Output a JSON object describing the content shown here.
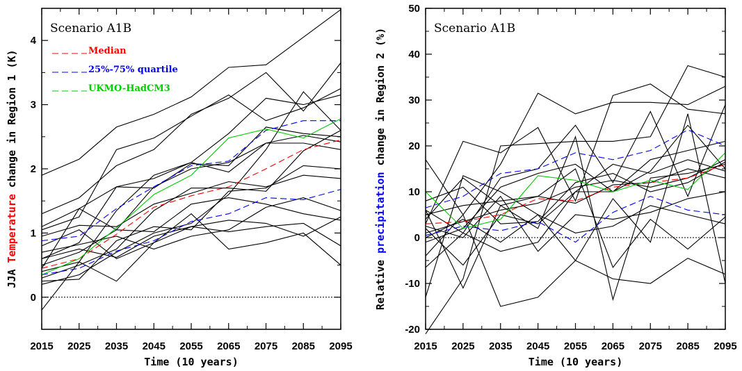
{
  "chart_data": [
    {
      "type": "line",
      "title": "Scenario A1B",
      "xlabel": "Time (10 years)",
      "ylabel": {
        "pre": "JJA ",
        "highlight": "Temperature",
        "post": " change in Region 1 (K)",
        "highlight_color": "#ff0000"
      },
      "x": [
        2015,
        2025,
        2035,
        2045,
        2055,
        2065,
        2075,
        2085,
        2095
      ],
      "xlim": [
        2015,
        2095
      ],
      "ylim": [
        -0.5,
        4.5
      ],
      "yticks": [
        0,
        1,
        2,
        3,
        4
      ],
      "ytick_labels": [
        "0",
        "1",
        "2",
        "3",
        "4"
      ],
      "xtick_labels": [
        "2015",
        "2025",
        "2035",
        "2045",
        "2055",
        "2065",
        "2075",
        "2085",
        "2095"
      ],
      "zero_line": 0,
      "legend": [
        {
          "label": "Median",
          "color": "#ff0000"
        },
        {
          "label": "25%-75% quartile",
          "color": "#0000ff"
        },
        {
          "label": "UKMO-HadCM3",
          "color": "#00cc00"
        }
      ],
      "series": [
        {
          "color": "#ff0000",
          "dashed": true,
          "values": [
            0.45,
            0.6,
            0.98,
            1.4,
            1.58,
            1.72,
            2.0,
            2.3,
            2.45
          ]
        },
        {
          "color": "#0000ff",
          "dashed": true,
          "values": [
            0.88,
            0.95,
            1.38,
            1.72,
            2.05,
            2.12,
            2.6,
            2.75,
            2.75
          ]
        },
        {
          "color": "#0000ff",
          "dashed": true,
          "values": [
            0.35,
            0.45,
            0.72,
            0.88,
            1.18,
            1.3,
            1.55,
            1.52,
            1.68
          ]
        },
        {
          "color": "#00cc00",
          "dashed": false,
          "values": [
            0.35,
            0.6,
            1.08,
            1.6,
            1.9,
            2.48,
            2.62,
            2.48,
            2.78
          ]
        },
        {
          "color": "#000000",
          "values": [
            1.9,
            2.15,
            2.65,
            2.85,
            3.12,
            3.58,
            3.62,
            4.05,
            4.48
          ]
        },
        {
          "color": "#000000",
          "values": [
            1.3,
            1.55,
            2.05,
            2.3,
            2.85,
            3.1,
            3.5,
            2.9,
            3.65
          ]
        },
        {
          "color": "#000000",
          "values": [
            1.05,
            1.25,
            2.3,
            2.48,
            2.82,
            3.15,
            2.75,
            2.95,
            3.25
          ]
        },
        {
          "color": "#000000",
          "values": [
            0.6,
            0.85,
            1.72,
            1.85,
            2.1,
            2.55,
            3.1,
            3.0,
            3.15
          ]
        },
        {
          "color": "#000000",
          "values": [
            0.2,
            0.35,
            0.7,
            1.0,
            1.15,
            1.6,
            2.3,
            3.2,
            2.6
          ]
        },
        {
          "color": "#000000",
          "values": [
            0.45,
            1.38,
            1.72,
            1.7,
            2.08,
            2.05,
            2.65,
            2.55,
            2.5
          ]
        },
        {
          "color": "#000000",
          "values": [
            0.5,
            0.7,
            1.05,
            1.72,
            2.0,
            2.1,
            2.4,
            2.52,
            2.42
          ]
        },
        {
          "color": "#000000",
          "values": [
            -0.2,
            0.55,
            1.35,
            1.9,
            2.1,
            1.95,
            2.4,
            2.4,
            2.3
          ]
        },
        {
          "color": "#000000",
          "values": [
            0.3,
            0.5,
            0.75,
            1.35,
            1.7,
            1.7,
            1.65,
            2.28,
            2.6
          ]
        },
        {
          "color": "#000000",
          "values": [
            0.95,
            1.12,
            1.1,
            1.45,
            1.62,
            1.8,
            1.72,
            1.9,
            1.85
          ]
        },
        {
          "color": "#000000",
          "values": [
            0.25,
            0.28,
            0.88,
            1.1,
            1.05,
            1.65,
            1.7,
            2.05,
            2.0
          ]
        },
        {
          "color": "#000000",
          "values": [
            1.1,
            1.38,
            1.05,
            1.02,
            1.45,
            1.55,
            1.45,
            1.3,
            1.2
          ]
        },
        {
          "color": "#000000",
          "values": [
            0.6,
            0.75,
            0.62,
            0.95,
            1.1,
            1.02,
            1.1,
            1.15,
            0.8
          ]
        },
        {
          "color": "#000000",
          "values": [
            0.4,
            0.55,
            0.25,
            0.85,
            1.3,
            0.75,
            0.85,
            1.0,
            0.5
          ]
        },
        {
          "color": "#000000",
          "values": [
            0.7,
            0.82,
            0.95,
            0.75,
            0.95,
            1.05,
            1.4,
            1.55,
            1.35
          ]
        },
        {
          "color": "#000000",
          "values": [
            0.8,
            1.05,
            0.6,
            0.85,
            1.1,
            1.2,
            1.15,
            0.95,
            1.25
          ]
        }
      ]
    },
    {
      "type": "line",
      "title": "Scenario A1B",
      "xlabel": "Time (10 years)",
      "ylabel": {
        "pre": "Relative ",
        "highlight": "precipitation",
        "post": " change in Region 2 (%)",
        "highlight_color": "#0000ff"
      },
      "x": [
        2015,
        2025,
        2035,
        2045,
        2055,
        2065,
        2075,
        2085,
        2095
      ],
      "xlim": [
        2015,
        2095
      ],
      "ylim": [
        -20,
        50
      ],
      "yticks": [
        -20,
        -10,
        0,
        10,
        20,
        30,
        40,
        50
      ],
      "ytick_labels": [
        "-20",
        "-10",
        "0",
        "10",
        "20",
        "30",
        "40",
        "50"
      ],
      "xtick_labels": [
        "2015",
        "2025",
        "2035",
        "2045",
        "2055",
        "2065",
        "2075",
        "2085",
        "2095"
      ],
      "zero_line": 0,
      "series": [
        {
          "color": "#ff0000",
          "dashed": true,
          "values": [
            3.0,
            3.5,
            5.0,
            8.5,
            8.0,
            11.0,
            12.0,
            13.0,
            16.0
          ]
        },
        {
          "color": "#0000ff",
          "dashed": true,
          "values": [
            6.5,
            9.0,
            14.0,
            15.0,
            18.5,
            17.0,
            19.0,
            23.5,
            20.0
          ]
        },
        {
          "color": "#0000ff",
          "dashed": true,
          "values": [
            0.5,
            2.5,
            1.5,
            3.5,
            -1.0,
            5.5,
            9.0,
            6.0,
            5.0
          ]
        },
        {
          "color": "#00cc00",
          "dashed": false,
          "values": [
            10.0,
            2.0,
            4.0,
            13.5,
            12.5,
            10.0,
            12.5,
            10.5,
            18.5
          ]
        },
        {
          "color": "#000000",
          "values": [
            17.0,
            5.0,
            16.0,
            31.5,
            27.0,
            29.5,
            29.5,
            29.0,
            33.0
          ]
        },
        {
          "color": "#000000",
          "values": [
            3.0,
            21.0,
            18.5,
            24.0,
            8.0,
            31.0,
            33.5,
            28.0,
            27.0
          ]
        },
        {
          "color": "#000000",
          "values": [
            -21.0,
            -9.0,
            20.0,
            20.5,
            21.0,
            21.0,
            22.0,
            37.5,
            35.0
          ]
        },
        {
          "color": "#000000",
          "values": [
            6.0,
            1.0,
            13.0,
            15.0,
            24.5,
            12.0,
            27.5,
            9.0,
            29.0
          ]
        },
        {
          "color": "#000000",
          "values": [
            -13.0,
            13.5,
            10.0,
            5.0,
            -5.0,
            8.5,
            -1.0,
            27.0,
            -10.0
          ]
        },
        {
          "color": "#000000",
          "values": [
            4.0,
            13.0,
            7.0,
            2.0,
            22.0,
            -13.5,
            13.0,
            14.0,
            16.0
          ]
        },
        {
          "color": "#000000",
          "values": [
            2.0,
            -6.0,
            5.0,
            3.0,
            10.0,
            10.0,
            14.5,
            24.5,
            15.0
          ]
        },
        {
          "color": "#000000",
          "values": [
            -4.0,
            5.0,
            -15.0,
            -13.0,
            -5.0,
            -9.0,
            -10.0,
            -4.5,
            -8.0
          ]
        },
        {
          "color": "#000000",
          "values": [
            6.0,
            -11.0,
            7.0,
            9.0,
            15.0,
            -6.5,
            4.0,
            -2.5,
            4.5
          ]
        },
        {
          "color": "#000000",
          "values": [
            -6.5,
            1.0,
            -3.0,
            -1.0,
            10.0,
            16.0,
            14.0,
            17.0,
            14.5
          ]
        },
        {
          "color": "#000000",
          "values": [
            1.0,
            3.5,
            6.0,
            7.5,
            11.0,
            12.5,
            11.0,
            13.0,
            17.0
          ]
        },
        {
          "color": "#000000",
          "values": [
            2.5,
            0.0,
            9.0,
            -3.0,
            5.0,
            4.0,
            5.5,
            8.5,
            10.0
          ]
        },
        {
          "color": "#000000",
          "values": [
            0.0,
            4.0,
            -1.0,
            5.0,
            1.0,
            2.5,
            7.0,
            5.0,
            3.0
          ]
        },
        {
          "color": "#000000",
          "values": [
            8.0,
            11.0,
            3.0,
            3.5,
            12.0,
            14.0,
            10.0,
            12.0,
            16.5
          ]
        },
        {
          "color": "#000000",
          "values": [
            5.0,
            7.0,
            8.0,
            9.0,
            7.5,
            11.5,
            12.0,
            15.0,
            13.0
          ]
        },
        {
          "color": "#000000",
          "values": [
            -1.0,
            2.0,
            11.0,
            14.0,
            16.0,
            10.0,
            17.0,
            19.0,
            21.0
          ]
        }
      ]
    }
  ]
}
